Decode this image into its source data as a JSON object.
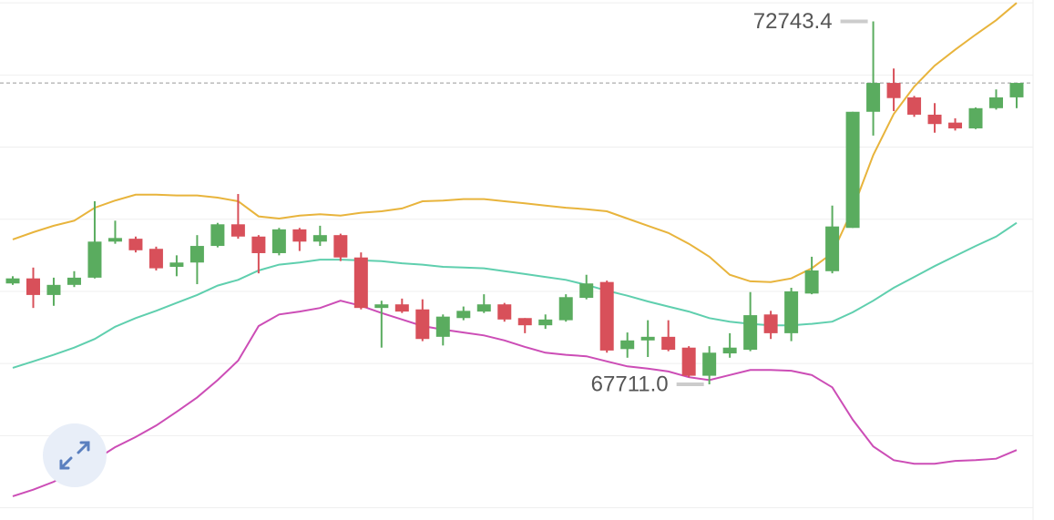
{
  "chart_data": {
    "type": "candlestick",
    "open": [
      69110,
      69180,
      68950,
      69090,
      69190,
      69690,
      69730,
      69590,
      69340,
      69400,
      69630,
      69930,
      69760,
      69530,
      69860,
      69690,
      69780,
      69470,
      68770,
      68820,
      68750,
      68370,
      68630,
      68720,
      68820,
      68630,
      68530,
      68600,
      68910,
      69130,
      68200,
      68320,
      68370,
      68220,
      67830,
      68140,
      68190,
      68680,
      68420,
      68970,
      69280,
      69880,
      71490,
      71890,
      71690,
      71450,
      71340,
      71260,
      71540,
      71690
    ],
    "high": [
      69210,
      69330,
      69190,
      69280,
      70250,
      69980,
      69760,
      69620,
      69500,
      69780,
      69950,
      70350,
      69780,
      69880,
      69880,
      69910,
      69800,
      69540,
      68870,
      68900,
      68890,
      68680,
      68790,
      68960,
      68840,
      68630,
      68680,
      68960,
      69230,
      69150,
      68430,
      68600,
      68600,
      68240,
      68240,
      68420,
      68990,
      68730,
      69050,
      69480,
      70190,
      71490,
      72743.4,
      72090,
      71710,
      71610,
      71400,
      71550,
      71800,
      71890
    ],
    "low": [
      69090,
      68770,
      68800,
      69060,
      69180,
      69660,
      69540,
      69290,
      69210,
      69100,
      69610,
      69730,
      69250,
      69500,
      69560,
      69630,
      69420,
      68750,
      68220,
      68700,
      68310,
      68250,
      68600,
      68700,
      68580,
      68420,
      68480,
      68580,
      68890,
      68150,
      68080,
      68090,
      68170,
      67810,
      67711,
      68080,
      68170,
      68340,
      68310,
      68960,
      69250,
      69880,
      71160,
      71500,
      71420,
      71200,
      71230,
      71250,
      71520,
      71540
    ],
    "close": [
      69180,
      68950,
      69090,
      69190,
      69690,
      69740,
      69570,
      69320,
      69400,
      69630,
      69930,
      69760,
      69530,
      69860,
      69690,
      69780,
      69470,
      68770,
      68820,
      68720,
      68340,
      68650,
      68730,
      68820,
      68610,
      68530,
      68610,
      68920,
      69110,
      68180,
      68320,
      68370,
      68190,
      67830,
      68150,
      68220,
      68670,
      68420,
      69000,
      69290,
      69900,
      71490,
      71890,
      71680,
      71450,
      71320,
      71260,
      71540,
      71690,
      71890
    ],
    "up_color": "#5aac5f",
    "down_color": "#d8505a",
    "lines": [
      {
        "color": "#e8b43c",
        "values": [
          69720,
          69820,
          69910,
          69980,
          70160,
          70260,
          70340,
          70340,
          70330,
          70330,
          70300,
          70250,
          70040,
          70010,
          70050,
          70070,
          70050,
          70090,
          70110,
          70150,
          70250,
          70260,
          70280,
          70280,
          70250,
          70220,
          70190,
          70160,
          70140,
          70110,
          70010,
          69910,
          69810,
          69660,
          69480,
          69230,
          69140,
          69130,
          69180,
          69320,
          69530,
          70140,
          70890,
          71460,
          71840,
          72130,
          72350,
          72560,
          72760,
          73000
        ]
      },
      {
        "color": "#5fcfae",
        "values": [
          67940,
          68030,
          68120,
          68220,
          68340,
          68510,
          68630,
          68730,
          68840,
          68950,
          69080,
          69160,
          69290,
          69370,
          69400,
          69440,
          69440,
          69430,
          69420,
          69390,
          69370,
          69340,
          69330,
          69320,
          69280,
          69240,
          69200,
          69160,
          69090,
          69010,
          68940,
          68860,
          68790,
          68720,
          68630,
          68580,
          68550,
          68530,
          68530,
          68550,
          68580,
          68710,
          68870,
          69050,
          69200,
          69350,
          69490,
          69630,
          69760,
          69950
        ]
      },
      {
        "color": "#cc4db6",
        "values": [
          66160,
          66250,
          66360,
          66510,
          66660,
          66840,
          66980,
          67140,
          67330,
          67530,
          67770,
          68040,
          68520,
          68680,
          68720,
          68770,
          68870,
          68800,
          68700,
          68610,
          68520,
          68470,
          68430,
          68390,
          68320,
          68230,
          68150,
          68120,
          68100,
          68030,
          67960,
          67930,
          67890,
          67810,
          67770,
          67840,
          67910,
          67910,
          67900,
          67840,
          67670,
          67220,
          66850,
          66660,
          66610,
          66610,
          66650,
          66660,
          66680,
          66800
        ]
      }
    ],
    "annotations": [
      {
        "label": "72743.4",
        "value": 72743.4
      },
      {
        "label": "67711.0",
        "value": 67711
      }
    ],
    "ylim": [
      65830,
      73040
    ],
    "yticks": [
      66000,
      67000,
      68000,
      69000,
      70000,
      71000,
      72000,
      73000
    ],
    "grid": true
  }
}
